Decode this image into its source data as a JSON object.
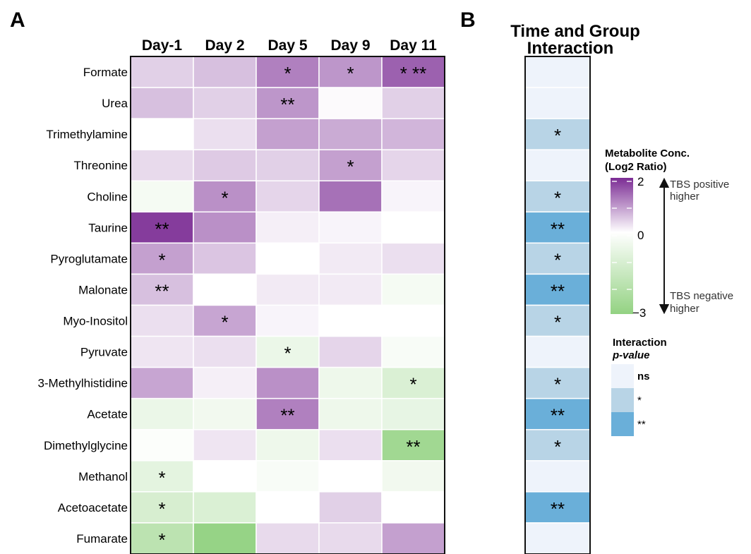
{
  "panel_a": {
    "label": "A"
  },
  "panel_b": {
    "label": "B",
    "title_line1": "Time and Group",
    "title_line2": "Interaction"
  },
  "legend_conc": {
    "title_line1": "Metabolite Conc.",
    "title_line2": "(Log2 Ratio)",
    "max_label": "2",
    "mid_label": "0",
    "min_label": "−3",
    "pos_line1": "TBS positive",
    "pos_line2": "higher",
    "neg_line1": "TBS negative",
    "neg_line2": "higher",
    "colors": {
      "high": "#7b2c94",
      "mid": "#ffffff",
      "low": "#93d282"
    }
  },
  "legend_p": {
    "title_line1": "Interaction",
    "title_line2": "p-value",
    "items": [
      {
        "label": "ns",
        "color": "#eef3fb"
      },
      {
        "label": "*",
        "color": "#b8d4e6"
      },
      {
        "label": "**",
        "color": "#6aafd9"
      }
    ]
  },
  "chart_data": [
    {
      "type": "heatmap",
      "x": [
        "Day-1",
        "Day 2",
        "Day 5",
        "Day 9",
        "Day 11"
      ],
      "y": [
        "Formate",
        "Urea",
        "Trimethylamine",
        "Threonine",
        "Choline",
        "Taurine",
        "Pyroglutamate",
        "Malonate",
        "Myo-Inositol",
        "Pyruvate",
        "3-Methylhistidine",
        "Acetate",
        "Dimethylglycine",
        "Methanol",
        "Acetoacetate",
        "Fumarate"
      ],
      "values": [
        [
          0.45,
          0.6,
          1.2,
          1.0,
          1.5
        ],
        [
          0.6,
          0.45,
          1.0,
          0.05,
          0.45
        ],
        [
          0.0,
          0.3,
          0.9,
          0.8,
          0.7
        ],
        [
          0.35,
          0.5,
          0.45,
          0.9,
          0.4
        ],
        [
          -0.15,
          1.05,
          0.4,
          1.35,
          0.1
        ],
        [
          1.85,
          1.05,
          0.15,
          0.1,
          0.0
        ],
        [
          0.9,
          0.55,
          0.0,
          0.2,
          0.3
        ],
        [
          0.6,
          0.0,
          0.2,
          0.2,
          -0.15
        ],
        [
          0.3,
          0.85,
          0.1,
          0.0,
          0.0
        ],
        [
          0.25,
          0.3,
          -0.3,
          0.4,
          -0.1
        ],
        [
          0.85,
          0.15,
          1.05,
          -0.25,
          -0.55
        ],
        [
          -0.3,
          -0.2,
          1.2,
          -0.25,
          -0.35
        ],
        [
          -0.05,
          0.25,
          -0.25,
          0.3,
          -1.4
        ],
        [
          -0.4,
          0.0,
          -0.1,
          0.0,
          -0.2
        ],
        [
          -0.6,
          -0.55,
          0.0,
          0.45,
          0.0
        ],
        [
          -1.0,
          -1.55,
          0.35,
          0.35,
          0.9
        ]
      ],
      "annotations": [
        [
          "",
          "",
          "*",
          "*",
          "* **"
        ],
        [
          "",
          "",
          "**",
          "",
          ""
        ],
        [
          "",
          "",
          "",
          "",
          ""
        ],
        [
          "",
          "",
          "",
          "*",
          ""
        ],
        [
          "",
          "*",
          "",
          "",
          ""
        ],
        [
          "**",
          "",
          "",
          "",
          ""
        ],
        [
          "*",
          "",
          "",
          "",
          ""
        ],
        [
          "**",
          "",
          "",
          "",
          ""
        ],
        [
          "",
          "*",
          "",
          "",
          ""
        ],
        [
          "",
          "",
          "*",
          "",
          ""
        ],
        [
          "",
          "",
          "",
          "",
          "*"
        ],
        [
          "",
          "",
          "**",
          "",
          ""
        ],
        [
          "",
          "",
          "",
          "",
          "**"
        ],
        [
          "*",
          "",
          "",
          "",
          ""
        ],
        [
          "*",
          "",
          "",
          "",
          ""
        ],
        [
          "*",
          "",
          "",
          "",
          ""
        ]
      ],
      "colorbar": {
        "title": "Metabolite Conc. (Log2 Ratio)",
        "range": [
          -3,
          2
        ],
        "ticks": [
          2,
          0,
          -3
        ]
      }
    },
    {
      "type": "heatmap",
      "title": "Time and Group Interaction",
      "y": [
        "Formate",
        "Urea",
        "Trimethylamine",
        "Threonine",
        "Choline",
        "Taurine",
        "Pyroglutamate",
        "Malonate",
        "Myo-Inositol",
        "Pyruvate",
        "3-Methylhistidine",
        "Acetate",
        "Dimethylglycine",
        "Methanol",
        "Acetoacetate",
        "Fumarate"
      ],
      "values": [
        "ns",
        "ns",
        "*",
        "ns",
        "*",
        "**",
        "*",
        "**",
        "*",
        "ns",
        "*",
        "**",
        "*",
        "ns",
        "**",
        "ns"
      ],
      "annotations": [
        "",
        "",
        "*",
        "",
        "*",
        "**",
        "*",
        "**",
        "*",
        "",
        "*",
        "**",
        "*",
        "",
        "**",
        ""
      ],
      "legend": {
        "title": "Interaction p-value",
        "items": [
          "ns",
          "*",
          "**"
        ]
      }
    }
  ]
}
